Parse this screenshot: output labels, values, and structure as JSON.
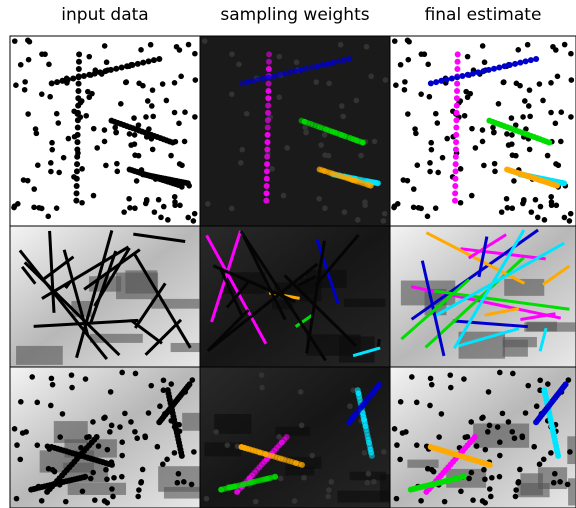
{
  "column_titles": [
    "input data",
    "sampling weights",
    "final estimate"
  ]
}
